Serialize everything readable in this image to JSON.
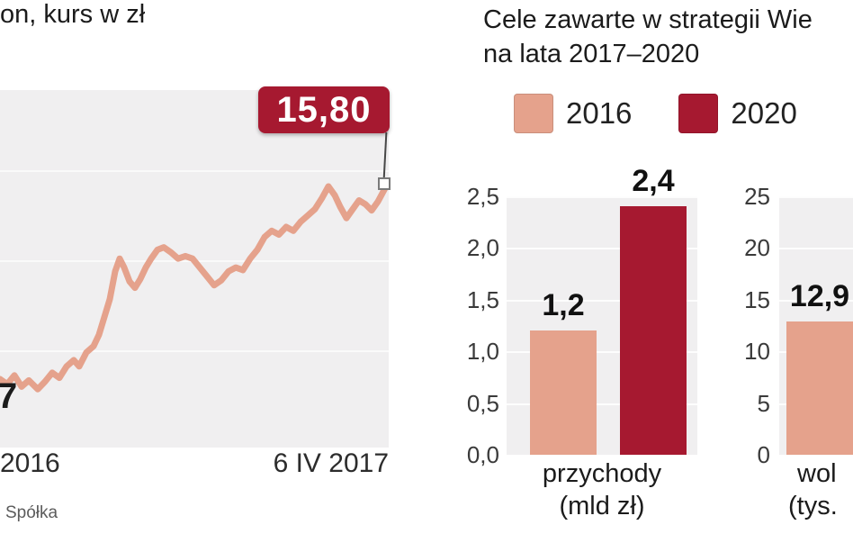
{
  "colors": {
    "accent_red": "#a61930",
    "salmon": "#e5a28c",
    "plot_background": "#f0eff0",
    "text_dark": "#1e1e1e",
    "text_gray": "#5c5c5c"
  },
  "left_chart": {
    "title_fragment": "on, kurs w zł",
    "badge_label": "15,80",
    "left_edge_value_fragment": "7",
    "source_fragment": "Spółka"
  },
  "right_section": {
    "title_line1": "Cele zawarte w strategii Wie",
    "title_line2": "na lata 2017–2020",
    "legend": [
      {
        "label": "2016",
        "color": "#e5a28c"
      },
      {
        "label": "2020",
        "color": "#a61930"
      }
    ]
  },
  "chart_data": [
    {
      "type": "line",
      "title": "kurs w zł (title partially cut at left edge)",
      "x_labels": [
        "2016",
        "6 IV 2017"
      ],
      "last_value": 15.8,
      "last_value_label": "15,80",
      "y_unit": "zł",
      "ylim_estimate": [
        5.5,
        19.6
      ],
      "line_color": "#e5a28c",
      "points": [
        [
          0,
          8.2
        ],
        [
          8,
          8.0
        ],
        [
          16,
          8.35
        ],
        [
          24,
          7.9
        ],
        [
          32,
          8.15
        ],
        [
          42,
          7.8
        ],
        [
          50,
          8.1
        ],
        [
          58,
          8.45
        ],
        [
          66,
          8.25
        ],
        [
          74,
          8.7
        ],
        [
          82,
          8.95
        ],
        [
          88,
          8.7
        ],
        [
          96,
          9.25
        ],
        [
          104,
          9.5
        ],
        [
          110,
          9.95
        ],
        [
          116,
          10.65
        ],
        [
          122,
          11.35
        ],
        [
          128,
          12.45
        ],
        [
          133,
          12.95
        ],
        [
          138,
          12.6
        ],
        [
          144,
          12.05
        ],
        [
          150,
          11.8
        ],
        [
          156,
          12.15
        ],
        [
          162,
          12.6
        ],
        [
          168,
          12.95
        ],
        [
          175,
          13.3
        ],
        [
          182,
          13.4
        ],
        [
          190,
          13.2
        ],
        [
          198,
          12.95
        ],
        [
          206,
          13.05
        ],
        [
          214,
          12.95
        ],
        [
          222,
          12.6
        ],
        [
          230,
          12.25
        ],
        [
          238,
          11.9
        ],
        [
          246,
          12.1
        ],
        [
          254,
          12.45
        ],
        [
          262,
          12.6
        ],
        [
          270,
          12.5
        ],
        [
          278,
          12.95
        ],
        [
          286,
          13.3
        ],
        [
          294,
          13.8
        ],
        [
          302,
          14.05
        ],
        [
          310,
          13.9
        ],
        [
          318,
          14.2
        ],
        [
          326,
          14.05
        ],
        [
          334,
          14.4
        ],
        [
          342,
          14.65
        ],
        [
          350,
          14.9
        ],
        [
          358,
          15.35
        ],
        [
          365,
          15.8
        ],
        [
          372,
          15.45
        ],
        [
          378,
          15.0
        ],
        [
          385,
          14.55
        ],
        [
          392,
          14.9
        ],
        [
          399,
          15.25
        ],
        [
          406,
          15.1
        ],
        [
          413,
          14.85
        ],
        [
          420,
          15.2
        ],
        [
          428,
          15.73
        ]
      ]
    },
    {
      "type": "bar",
      "categories": [
        "2016",
        "2020"
      ],
      "values": [
        1.2,
        2.4
      ],
      "value_labels": [
        "1,2",
        "2,4"
      ],
      "yticks": [
        "2,5",
        "2,0",
        "1,5",
        "1,0",
        "0,5",
        "0,0"
      ],
      "ylim": [
        0,
        2.5
      ],
      "xlabel_line1": "przychody",
      "xlabel_line2": "(mld zł)"
    },
    {
      "type": "bar",
      "categories": [
        "2016"
      ],
      "values": [
        12.9
      ],
      "value_labels": [
        "12,9"
      ],
      "yticks": [
        "25",
        "20",
        "15",
        "10",
        "5",
        "0"
      ],
      "ylim": [
        0,
        25
      ],
      "xlabel_line1": "wol",
      "xlabel_line2": "(tys."
    }
  ]
}
